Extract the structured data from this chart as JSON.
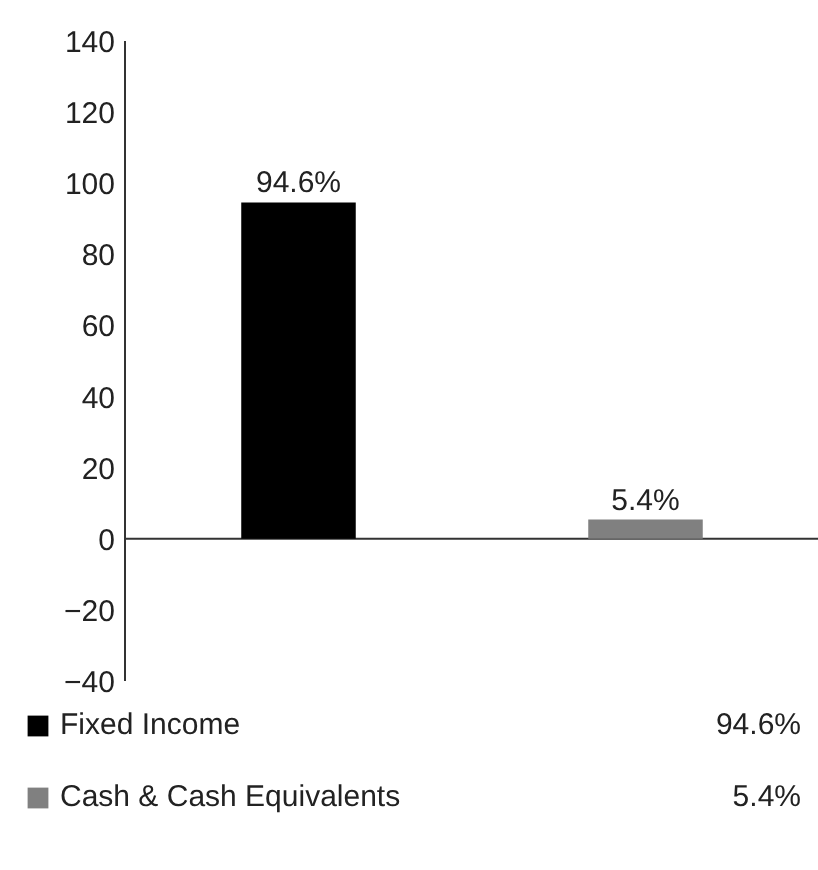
{
  "chart_data": {
    "type": "bar",
    "categories": [
      null,
      null
    ],
    "series": [
      {
        "name": "Fixed Income",
        "color": "#000000",
        "values": [
          94.6,
          null
        ],
        "value_labels": [
          "94.6%",
          null
        ]
      },
      {
        "name": "Cash & Cash Equivalents",
        "color": "#808080",
        "values": [
          null,
          5.4
        ],
        "value_labels": [
          null,
          "5.4%"
        ]
      }
    ],
    "ylim": [
      -40,
      140
    ],
    "yticks": [
      -40,
      -20,
      0,
      20,
      40,
      60,
      80,
      100,
      120,
      140
    ],
    "ref_lines": [
      {
        "axis": "y",
        "value": 0,
        "color": "#333333",
        "line_style": "solid"
      }
    ],
    "grid": false,
    "legend": "bottom",
    "tick_labels": "y"
  }
}
